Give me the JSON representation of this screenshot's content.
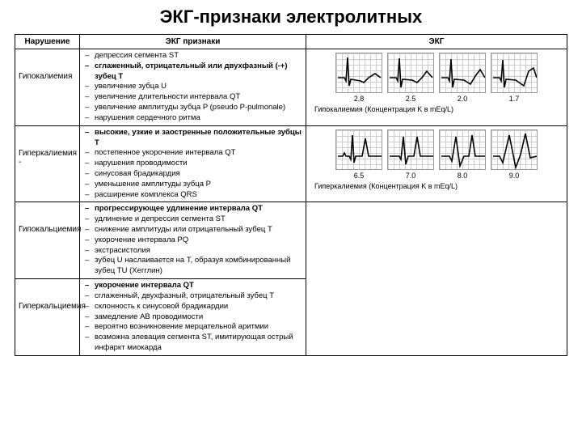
{
  "title": "ЭКГ-признаки электролитных",
  "headers": {
    "col1": "Нарушение",
    "col2": "ЭКГ признаки",
    "col3": "ЭКГ"
  },
  "rows": [
    {
      "name": "Гипокалиемия",
      "signs": [
        {
          "t": "депрессия сегмента ST",
          "b": false
        },
        {
          "t": "сглаженный, отрицательный или двухфазный (-+) зубец T",
          "b": true
        },
        {
          "t": "увеличение зубца U",
          "b": false
        },
        {
          "t": "увеличение длительности интервала QT",
          "b": false
        },
        {
          "t": "увеличение амплитуды зубца P (pseudo P-pulmonale)",
          "b": false
        },
        {
          "t": "нарушения сердечного ритма",
          "b": false
        }
      ],
      "ecg": {
        "values": [
          "2.8",
          "2.5",
          "2.0",
          "1.7"
        ],
        "caption": "Гипокалиемия  (Концентрация K в mEq/L)",
        "paths": [
          "M2,30 L10,30 L12,34 L14,5 L16,40 L18,32 L30,34 L34,36 L40,30 L48,25 L55,30",
          "M2,30 L10,30 L12,34 L14,6 L16,42 L18,32 L30,33 L36,36 L42,30 L48,22 L55,30",
          "M2,30 L10,30 L12,34 L14,7 L16,42 L18,32 L30,33 L38,38 L44,28 L50,20 L56,30",
          "M2,30 L10,30 L12,34 L14,8 L16,42 L18,32 L30,33 L40,40 L46,22 L52,18 L56,30"
        ]
      }
    },
    {
      "name": "Гиперкалиемия -",
      "signs": [
        {
          "t": "высокие, узкие и заостренные положительные зубцы T",
          "b": true
        },
        {
          "t": "постепенное укорочение интервала QT",
          "b": false
        },
        {
          "t": "нарушения проводимости",
          "b": false
        },
        {
          "t": "синусовая брадикардия",
          "b": false
        },
        {
          "t": "уменьшение амплитуды зубца P",
          "b": false
        },
        {
          "t": "расширение комплекса QRS",
          "b": false
        }
      ],
      "ecg": {
        "values": [
          "6.5",
          "7.0",
          "8.0",
          "9.0"
        ],
        "caption": "Гиперкалиемия  (Концентрация K в mEq/L)",
        "paths": [
          "M2,32 L8,32 L10,28 L12,32 L16,32 L18,36 L20,6 L22,40 L24,32 L32,32 L36,10 L40,32 L56,32",
          "M2,32 L10,32 L14,32 L16,36 L19,8 L22,42 L25,32 L32,32 L36,8 L40,32 L56,32",
          "M2,32 L12,32 L15,38 L20,8 L25,44 L30,32 L36,32 L40,6 L44,32 L56,32",
          "M2,32 L10,32 L14,40 L22,6 L30,46 L36,30 L42,4 L48,34 L56,32"
        ]
      }
    },
    {
      "name": "Гипокальциемия",
      "signs": [
        {
          "t": "прогрессирующее удлинение интервала QT",
          "b": true
        },
        {
          "t": "удлинение и депрессия сегмента ST",
          "b": false
        },
        {
          "t": "снижение амплитуды или отрицательный зубец T",
          "b": false
        },
        {
          "t": "укорочение интервала PQ",
          "b": false
        },
        {
          "t": "экстрасистолия",
          "b": false
        },
        {
          "t": "зубец U наслаивается на T, образуя комбинированный зубец TU (Хегглин)",
          "b": false
        }
      ],
      "ecg": null
    },
    {
      "name": "Гиперкальциемия",
      "signs": [
        {
          "t": "укорочение интервала QT",
          "b": true
        },
        {
          "t": "сглаженный, двухфазный, отрицательный зубец T",
          "b": false
        },
        {
          "t": "склонность к синусовой брадикардии",
          "b": false
        },
        {
          "t": "замедление АВ проводимости",
          "b": false
        },
        {
          "t": "вероятно возникновение мерцательной аритмии",
          "b": false
        },
        {
          "t": "возможна элевация сегмента ST, имитирующая острый инфаркт миокарда",
          "b": false
        }
      ],
      "ecg": null
    }
  ],
  "style": {
    "stroke": "#000000",
    "stroke_width": 1.6
  }
}
